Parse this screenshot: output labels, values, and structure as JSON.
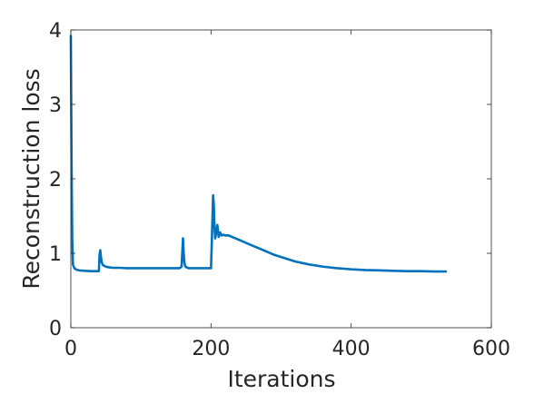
{
  "chart_data": {
    "type": "line",
    "title": "",
    "xlabel": "Iterations",
    "ylabel": "Reconstruction loss",
    "xlim": [
      0,
      600
    ],
    "ylim": [
      0,
      4
    ],
    "xticks": [
      0,
      200,
      400,
      600
    ],
    "yticks": [
      0,
      1,
      2,
      3,
      4
    ],
    "xtick_labels": [
      "0",
      "200",
      "400",
      "600"
    ],
    "ytick_labels": [
      "0",
      "1",
      "2",
      "3",
      "4"
    ],
    "grid": false,
    "legend": "none",
    "colors": {
      "line": "#0072bd",
      "axes": "#262626"
    },
    "series": [
      {
        "x": [
          0,
          1,
          2,
          3,
          5,
          8,
          12,
          20,
          30,
          40,
          41,
          42,
          43,
          44,
          46,
          50,
          55,
          60,
          70,
          80,
          90,
          100,
          120,
          140,
          155,
          158,
          159,
          160,
          161,
          162,
          163,
          165,
          168,
          172,
          180,
          190,
          200,
          201,
          202,
          203,
          204,
          205,
          206,
          207,
          208,
          209,
          210,
          211,
          212,
          213,
          214,
          215,
          216,
          218,
          220,
          222,
          225,
          230,
          240,
          250,
          260,
          270,
          280,
          290,
          300,
          320,
          340,
          360,
          380,
          400,
          420,
          440,
          460,
          480,
          500,
          520,
          535
        ],
        "y": [
          3.92,
          2.3,
          1.2,
          0.85,
          0.8,
          0.78,
          0.77,
          0.765,
          0.76,
          0.76,
          0.98,
          1.04,
          0.95,
          0.88,
          0.84,
          0.82,
          0.81,
          0.805,
          0.805,
          0.8,
          0.8,
          0.8,
          0.8,
          0.8,
          0.8,
          0.82,
          1.0,
          1.2,
          1.0,
          0.88,
          0.83,
          0.81,
          0.8,
          0.8,
          0.8,
          0.8,
          0.8,
          1.1,
          1.45,
          1.78,
          1.65,
          1.35,
          1.2,
          1.25,
          1.32,
          1.38,
          1.3,
          1.22,
          1.25,
          1.28,
          1.26,
          1.24,
          1.24,
          1.25,
          1.24,
          1.24,
          1.24,
          1.22,
          1.18,
          1.14,
          1.1,
          1.06,
          1.02,
          0.98,
          0.95,
          0.89,
          0.85,
          0.82,
          0.8,
          0.785,
          0.775,
          0.77,
          0.765,
          0.76,
          0.76,
          0.755,
          0.755
        ]
      }
    ]
  }
}
